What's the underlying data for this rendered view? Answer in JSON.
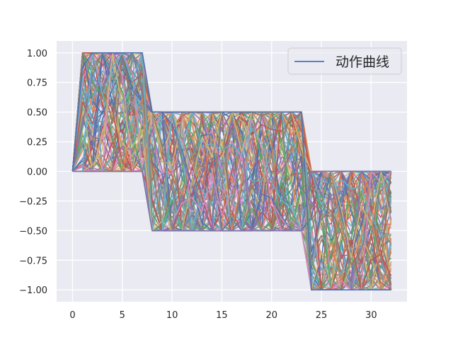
{
  "chart_data": {
    "type": "line",
    "title": "",
    "xlabel": "",
    "ylabel": "",
    "xlim": [
      -1.6,
      33.6
    ],
    "ylim": [
      -1.1,
      1.1
    ],
    "xticks": [
      0,
      5,
      10,
      15,
      20,
      25,
      30
    ],
    "yticks": [
      -1.0,
      -0.75,
      -0.5,
      -0.25,
      0.0,
      0.25,
      0.5,
      0.75,
      1.0
    ],
    "xtick_labels": [
      "0",
      "5",
      "10",
      "15",
      "20",
      "25",
      "30"
    ],
    "ytick_labels": [
      "−1.00",
      "−0.75",
      "−0.50",
      "−0.25",
      "0.00",
      "0.25",
      "0.50",
      "0.75",
      "1.00"
    ],
    "grid": true,
    "legend": {
      "position": "top-right",
      "entries": [
        {
          "label": "动作曲线",
          "color": "#4c72b0"
        }
      ]
    },
    "x_range": [
      0,
      32
    ],
    "n_series": 120,
    "segments": [
      {
        "x_start": 1,
        "x_end": 7,
        "min": 0.0,
        "max": 1.0
      },
      {
        "x_start": 8,
        "x_end": 23,
        "min": -0.5,
        "max": 0.5
      },
      {
        "x_start": 24,
        "x_end": 32,
        "min": -1.0,
        "max": 0.0
      }
    ],
    "start_value": 0.0,
    "palette": [
      "#4c72b0",
      "#dd8452",
      "#55a868",
      "#c44e52",
      "#8172b3",
      "#937860",
      "#da8bc3",
      "#8c8c8c",
      "#ccb974",
      "#64b5cd"
    ]
  }
}
